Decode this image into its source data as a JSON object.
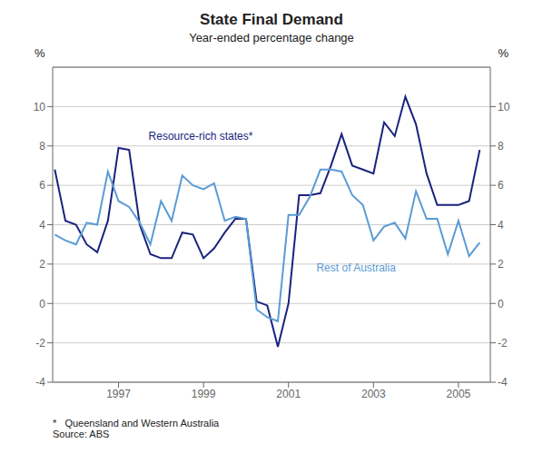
{
  "chart_data": {
    "type": "line",
    "title": "State Final Demand",
    "subtitle": "Year-ended percentage change",
    "ylabel": "%",
    "y2label": "%",
    "notes": [
      "*   Queensland and Western Australia",
      "Source: ABS"
    ],
    "x": [
      1995.5,
      1995.75,
      1996.0,
      1996.25,
      1996.5,
      1996.75,
      1997.0,
      1997.25,
      1997.5,
      1997.75,
      1998.0,
      1998.25,
      1998.5,
      1998.75,
      1999.0,
      1999.25,
      1999.5,
      1999.75,
      2000.0,
      2000.25,
      2000.5,
      2000.75,
      2001.0,
      2001.25,
      2001.5,
      2001.75,
      2002.0,
      2002.25,
      2002.5,
      2002.75,
      2003.0,
      2003.25,
      2003.5,
      2003.75,
      2004.0,
      2004.25,
      2004.5,
      2004.75,
      2005.0,
      2005.25,
      2005.5
    ],
    "series": [
      {
        "name": "Resource-rich states*",
        "color": "#1a237e",
        "values": [
          6.8,
          4.2,
          4.0,
          3.0,
          2.6,
          4.2,
          7.9,
          7.8,
          4.0,
          2.5,
          2.3,
          2.3,
          3.6,
          3.5,
          2.3,
          2.8,
          3.6,
          4.3,
          4.3,
          0.1,
          -0.1,
          -2.2,
          0.0,
          5.5,
          5.5,
          5.6,
          7.0,
          8.6,
          7.0,
          6.8,
          6.6,
          9.2,
          8.5,
          10.5,
          9.1,
          6.6,
          5.0,
          5.0,
          5.0,
          5.2,
          7.8
        ]
      },
      {
        "name": "Rest of Australia",
        "color": "#5b9bd5",
        "values": [
          3.5,
          3.2,
          3.0,
          4.1,
          4.0,
          6.7,
          5.2,
          4.9,
          4.1,
          3.0,
          5.2,
          4.2,
          6.5,
          6.0,
          5.8,
          6.1,
          4.2,
          4.4,
          4.3,
          -0.3,
          -0.7,
          -0.9,
          4.5,
          4.5,
          5.4,
          6.8,
          6.8,
          6.7,
          5.5,
          5.0,
          3.2,
          3.9,
          4.1,
          3.3,
          5.7,
          4.3,
          4.3,
          2.5,
          4.2,
          2.4,
          3.1
        ]
      }
    ],
    "annotations": [
      {
        "text": "Resource-rich states*",
        "x": 1997.6,
        "y": 8.5,
        "color": "#1a237e"
      },
      {
        "text": "Rest of Australia",
        "x": 2001.55,
        "y": 1.8,
        "color": "#5b9bd5"
      }
    ],
    "xlim": [
      1995.45,
      2005.75
    ],
    "xticks": [
      1997,
      1999,
      2001,
      2003,
      2005
    ],
    "ylim": [
      -4,
      12
    ],
    "yticks": [
      -4,
      -2,
      0,
      2,
      4,
      6,
      8,
      10
    ],
    "y2lim": [
      -4,
      12
    ],
    "y2ticks": [
      -4,
      -2,
      0,
      2,
      4,
      6,
      8,
      10
    ],
    "grid": true
  }
}
